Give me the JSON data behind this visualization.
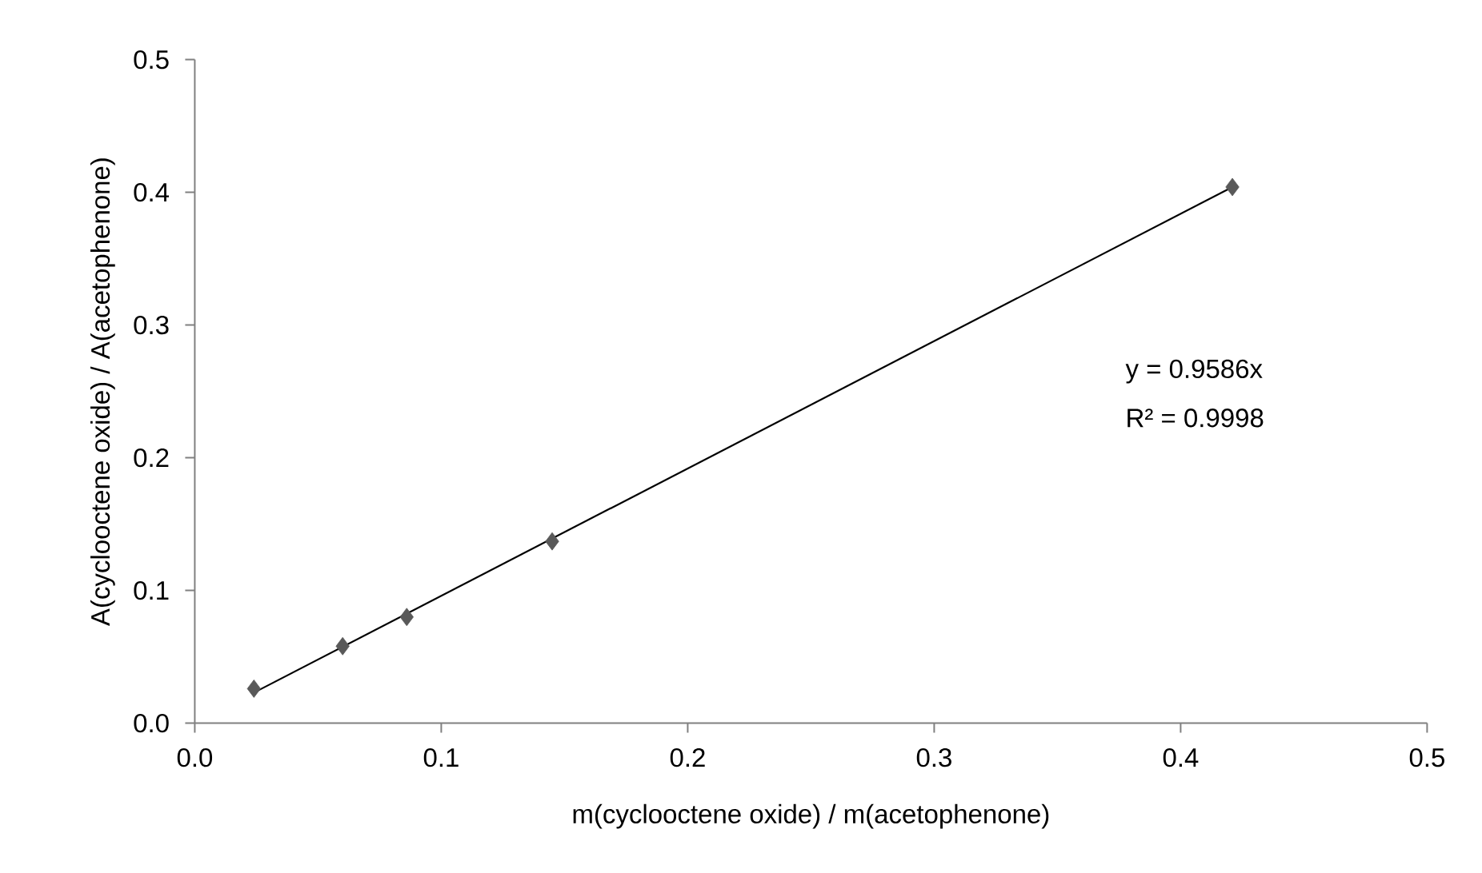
{
  "chart_data": {
    "type": "scatter",
    "xlabel": "m(cyclooctene oxide) / m(acetophenone)",
    "ylabel": "A(cyclooctene oxide) / A(acetophenone)",
    "xlim": [
      0,
      0.5
    ],
    "ylim": [
      0,
      0.5
    ],
    "xticks": [
      {
        "value": 0,
        "label": "0.0"
      },
      0.1,
      0.2,
      0.3,
      0.4,
      0.5
    ],
    "yticks": [
      {
        "value": 0,
        "label": "0.0"
      },
      0.1,
      0.2,
      0.3,
      0.4,
      0.5
    ],
    "marker": "diamond",
    "series": [
      {
        "color": "#595959",
        "x": [
          0.024,
          0.06,
          0.086,
          0.145,
          0.421
        ],
        "values": [
          0.026,
          0.058,
          0.08,
          0.137,
          0.404
        ]
      },
      {
        "type": "line",
        "color": "#000000",
        "marker": "none",
        "x": [
          0.024,
          0.421
        ],
        "values": [
          0.023,
          0.404
        ]
      }
    ],
    "annotations": [
      "y = 0.9586x",
      "R² = 0.9998"
    ]
  }
}
